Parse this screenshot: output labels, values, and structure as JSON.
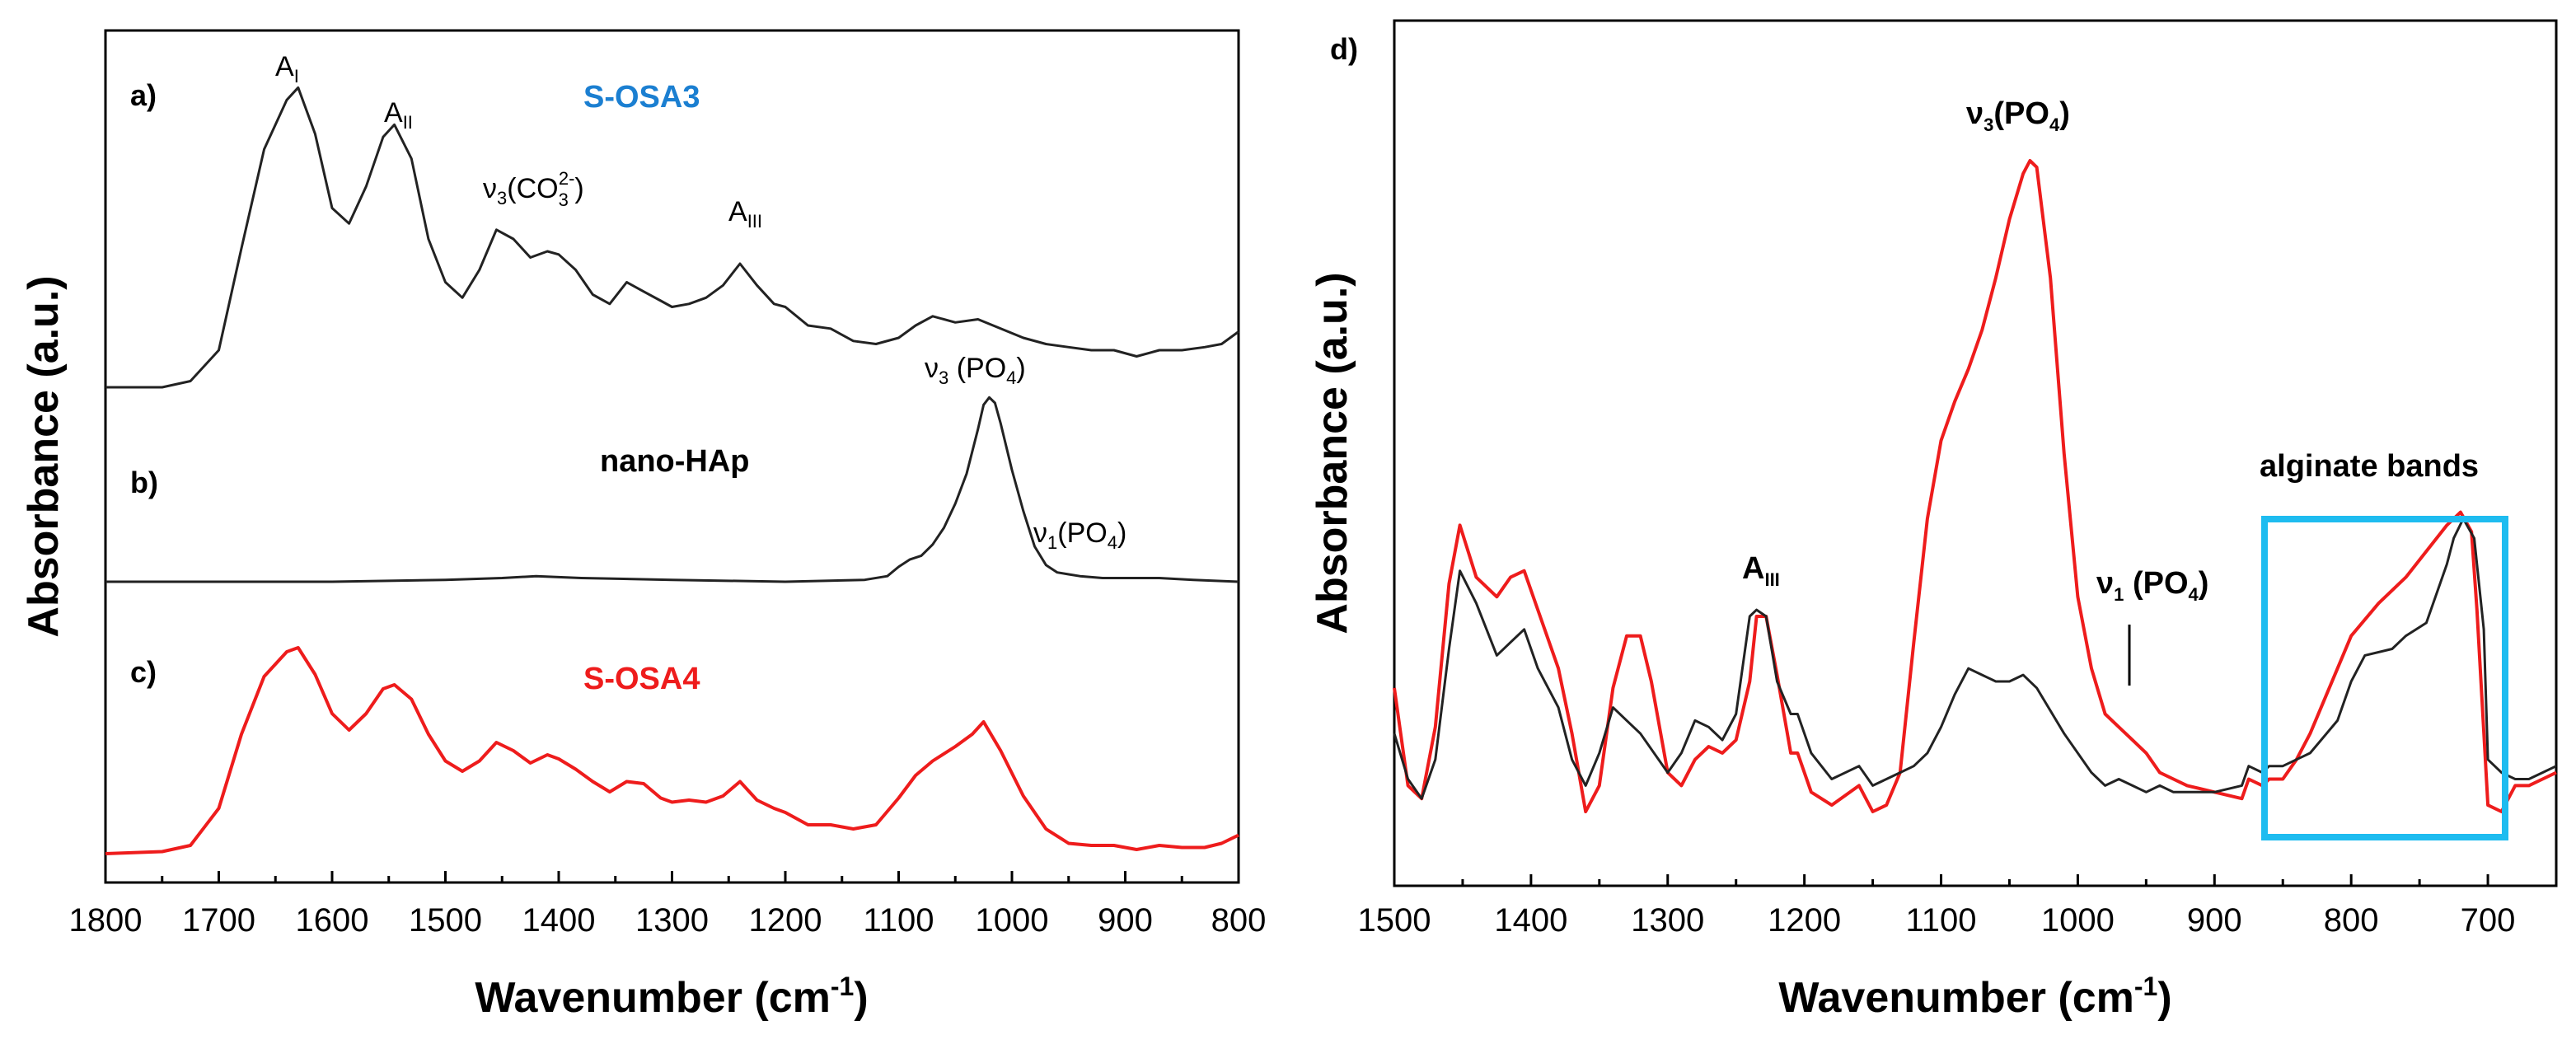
{
  "colors": {
    "black_series": "#222222",
    "red_series": "#ee1c1c",
    "sample_blue": "#1b7fd1",
    "box_blue": "#1ebcf0"
  },
  "chart_data": [
    {
      "type": "line",
      "panel": "left",
      "xlabel": "Wavenumber (cm",
      "xlabel_sup": "-1",
      "xlabel_close": ")",
      "ylabel": "Absorbance (a.u.)",
      "xlim": [
        1800,
        800
      ],
      "x_reversed": true,
      "xticks": [
        "1800",
        "1700",
        "1600",
        "1500",
        "1400",
        "1300",
        "1200",
        "1100",
        "1000",
        "900",
        "800"
      ],
      "yticks": [],
      "grid": false,
      "series": [
        {
          "panel_label": "a)",
          "sample_label": "S-OSA3",
          "color": "#222222",
          "x": [
            1800,
            1750,
            1725,
            1700,
            1680,
            1660,
            1640,
            1630,
            1615,
            1600,
            1585,
            1570,
            1555,
            1545,
            1530,
            1515,
            1500,
            1485,
            1470,
            1455,
            1440,
            1425,
            1410,
            1400,
            1385,
            1370,
            1355,
            1340,
            1325,
            1310,
            1300,
            1285,
            1270,
            1255,
            1240,
            1225,
            1210,
            1200,
            1180,
            1160,
            1140,
            1120,
            1100,
            1085,
            1070,
            1050,
            1030,
            1010,
            990,
            970,
            950,
            930,
            910,
            890,
            870,
            850,
            830,
            815,
            800
          ],
          "y": [
            0.0,
            0.0,
            0.02,
            0.12,
            0.45,
            0.77,
            0.93,
            0.97,
            0.82,
            0.58,
            0.53,
            0.65,
            0.81,
            0.85,
            0.74,
            0.48,
            0.34,
            0.29,
            0.38,
            0.51,
            0.48,
            0.42,
            0.44,
            0.43,
            0.38,
            0.3,
            0.27,
            0.34,
            0.31,
            0.28,
            0.26,
            0.27,
            0.29,
            0.33,
            0.4,
            0.33,
            0.27,
            0.26,
            0.2,
            0.19,
            0.15,
            0.14,
            0.16,
            0.2,
            0.23,
            0.21,
            0.22,
            0.19,
            0.16,
            0.14,
            0.13,
            0.12,
            0.12,
            0.1,
            0.12,
            0.12,
            0.13,
            0.14,
            0.18
          ]
        },
        {
          "panel_label": "b)",
          "sample_label": "nano-HAp",
          "color": "#222222",
          "x": [
            1800,
            1600,
            1500,
            1450,
            1420,
            1380,
            1300,
            1200,
            1130,
            1110,
            1100,
            1090,
            1080,
            1070,
            1060,
            1050,
            1040,
            1030,
            1025,
            1020,
            1015,
            1010,
            1000,
            990,
            980,
            970,
            960,
            950,
            940,
            920,
            900,
            870,
            840,
            800
          ],
          "y": [
            0.0,
            0.0,
            0.01,
            0.02,
            0.03,
            0.02,
            0.01,
            0.0,
            0.01,
            0.03,
            0.08,
            0.12,
            0.14,
            0.2,
            0.29,
            0.42,
            0.58,
            0.82,
            0.95,
            0.99,
            0.96,
            0.85,
            0.6,
            0.38,
            0.19,
            0.09,
            0.05,
            0.04,
            0.03,
            0.02,
            0.02,
            0.02,
            0.01,
            0.0
          ]
        },
        {
          "panel_label": "c)",
          "sample_label": "S-OSA4",
          "color": "#ee1c1c",
          "x": [
            1800,
            1750,
            1725,
            1700,
            1680,
            1660,
            1640,
            1630,
            1615,
            1600,
            1585,
            1570,
            1555,
            1545,
            1530,
            1515,
            1500,
            1485,
            1470,
            1455,
            1440,
            1425,
            1410,
            1400,
            1385,
            1370,
            1355,
            1340,
            1325,
            1310,
            1300,
            1285,
            1270,
            1255,
            1240,
            1225,
            1210,
            1200,
            1180,
            1160,
            1140,
            1120,
            1100,
            1085,
            1070,
            1050,
            1035,
            1025,
            1010,
            990,
            970,
            950,
            930,
            910,
            890,
            870,
            850,
            830,
            815,
            800
          ],
          "y": [
            0.0,
            0.01,
            0.04,
            0.22,
            0.58,
            0.86,
            0.98,
            1.0,
            0.87,
            0.68,
            0.6,
            0.68,
            0.8,
            0.82,
            0.75,
            0.58,
            0.45,
            0.4,
            0.45,
            0.54,
            0.5,
            0.44,
            0.48,
            0.46,
            0.41,
            0.35,
            0.3,
            0.35,
            0.34,
            0.27,
            0.25,
            0.26,
            0.25,
            0.28,
            0.35,
            0.26,
            0.22,
            0.2,
            0.14,
            0.14,
            0.12,
            0.14,
            0.27,
            0.38,
            0.45,
            0.52,
            0.58,
            0.64,
            0.5,
            0.28,
            0.12,
            0.05,
            0.04,
            0.04,
            0.02,
            0.04,
            0.03,
            0.03,
            0.05,
            0.09
          ]
        }
      ],
      "annotations": [
        {
          "label": "A",
          "sub": "I"
        },
        {
          "label": "A",
          "sub": "II"
        },
        {
          "label": "ν",
          "sub": "3",
          "after": "(CO",
          "sub2": "3",
          "sup2": "2-",
          "close": ")"
        },
        {
          "label": "A",
          "sub": "III"
        },
        {
          "label": "ν",
          "sub": "3",
          "after": " (PO",
          "sub2": "4",
          "close": ")"
        },
        {
          "label": "ν",
          "sub": "1",
          "after": "(PO",
          "sub2": "4",
          "close": ")"
        }
      ]
    },
    {
      "type": "line",
      "panel": "right",
      "panel_label": "d)",
      "xlabel": "Wavenumber (cm",
      "xlabel_sup": "-1",
      "xlabel_close": ")",
      "ylabel": "Absorbance (a.u.)",
      "xlim": [
        1500,
        650
      ],
      "x_reversed": true,
      "xticks": [
        "1500",
        "1400",
        "1300",
        "1200",
        "1100",
        "1000",
        "900",
        "800",
        "700"
      ],
      "tick_values": [
        1500,
        1400,
        1300,
        1200,
        1100,
        1000,
        900,
        800,
        700
      ],
      "yticks": [],
      "grid": false,
      "series": [
        {
          "color": "#ee1c1c",
          "x": [
            1500,
            1490,
            1480,
            1470,
            1460,
            1452,
            1440,
            1425,
            1415,
            1405,
            1395,
            1380,
            1370,
            1360,
            1350,
            1340,
            1330,
            1320,
            1312,
            1300,
            1290,
            1280,
            1270,
            1260,
            1250,
            1240,
            1235,
            1228,
            1220,
            1210,
            1205,
            1195,
            1180,
            1160,
            1150,
            1140,
            1130,
            1120,
            1110,
            1100,
            1090,
            1080,
            1070,
            1060,
            1050,
            1040,
            1035,
            1030,
            1020,
            1010,
            1000,
            990,
            980,
            970,
            960,
            950,
            940,
            930,
            920,
            900,
            880,
            875,
            865,
            860,
            850,
            840,
            830,
            820,
            800,
            780,
            760,
            745,
            730,
            720,
            712,
            708,
            700,
            690,
            680,
            670,
            660,
            650
          ],
          "y": [
            0.19,
            0.04,
            0.02,
            0.13,
            0.35,
            0.44,
            0.36,
            0.33,
            0.36,
            0.37,
            0.31,
            0.22,
            0.12,
            0.0,
            0.04,
            0.19,
            0.27,
            0.27,
            0.2,
            0.06,
            0.04,
            0.08,
            0.1,
            0.09,
            0.11,
            0.2,
            0.3,
            0.3,
            0.21,
            0.09,
            0.09,
            0.03,
            0.01,
            0.04,
            0.0,
            0.01,
            0.06,
            0.26,
            0.45,
            0.57,
            0.63,
            0.68,
            0.74,
            0.82,
            0.91,
            0.98,
            1.0,
            0.99,
            0.82,
            0.55,
            0.33,
            0.22,
            0.15,
            0.13,
            0.11,
            0.09,
            0.06,
            0.05,
            0.04,
            0.03,
            0.02,
            0.05,
            0.04,
            0.05,
            0.05,
            0.08,
            0.12,
            0.17,
            0.27,
            0.32,
            0.36,
            0.4,
            0.44,
            0.46,
            0.43,
            0.31,
            0.01,
            0.0,
            0.04,
            0.04,
            0.05,
            0.06
          ]
        },
        {
          "color": "#222222",
          "x": [
            1500,
            1490,
            1480,
            1470,
            1460,
            1452,
            1440,
            1425,
            1415,
            1405,
            1395,
            1380,
            1370,
            1360,
            1350,
            1340,
            1330,
            1320,
            1300,
            1290,
            1280,
            1270,
            1260,
            1250,
            1240,
            1235,
            1228,
            1220,
            1210,
            1205,
            1195,
            1180,
            1160,
            1150,
            1140,
            1130,
            1120,
            1110,
            1100,
            1090,
            1080,
            1070,
            1060,
            1050,
            1040,
            1030,
            1010,
            990,
            980,
            970,
            960,
            950,
            940,
            930,
            920,
            900,
            880,
            875,
            865,
            860,
            850,
            830,
            810,
            800,
            790,
            770,
            760,
            745,
            730,
            725,
            718,
            710,
            703,
            700,
            690,
            680,
            670,
            660,
            650
          ],
          "y": [
            0.12,
            0.05,
            0.02,
            0.08,
            0.25,
            0.37,
            0.32,
            0.24,
            0.26,
            0.28,
            0.22,
            0.16,
            0.08,
            0.04,
            0.09,
            0.16,
            0.14,
            0.12,
            0.06,
            0.09,
            0.14,
            0.13,
            0.11,
            0.15,
            0.3,
            0.31,
            0.3,
            0.2,
            0.15,
            0.15,
            0.09,
            0.05,
            0.07,
            0.04,
            0.05,
            0.06,
            0.07,
            0.09,
            0.13,
            0.18,
            0.22,
            0.21,
            0.2,
            0.2,
            0.21,
            0.19,
            0.12,
            0.06,
            0.04,
            0.05,
            0.04,
            0.03,
            0.04,
            0.03,
            0.03,
            0.03,
            0.04,
            0.07,
            0.06,
            0.07,
            0.07,
            0.09,
            0.14,
            0.2,
            0.24,
            0.25,
            0.27,
            0.29,
            0.38,
            0.42,
            0.45,
            0.42,
            0.28,
            0.08,
            0.06,
            0.05,
            0.05,
            0.06,
            0.07
          ]
        }
      ],
      "annotations": [
        {
          "label": "ν",
          "sub": "3",
          "after": "(PO",
          "sub2": "4",
          "close": ")"
        },
        {
          "label": "A",
          "sub": "III"
        },
        {
          "label": "ν",
          "sub": "1",
          "after": " (PO",
          "sub2": "4",
          "close": ")"
        },
        {
          "label": "alginate bands"
        }
      ]
    }
  ]
}
